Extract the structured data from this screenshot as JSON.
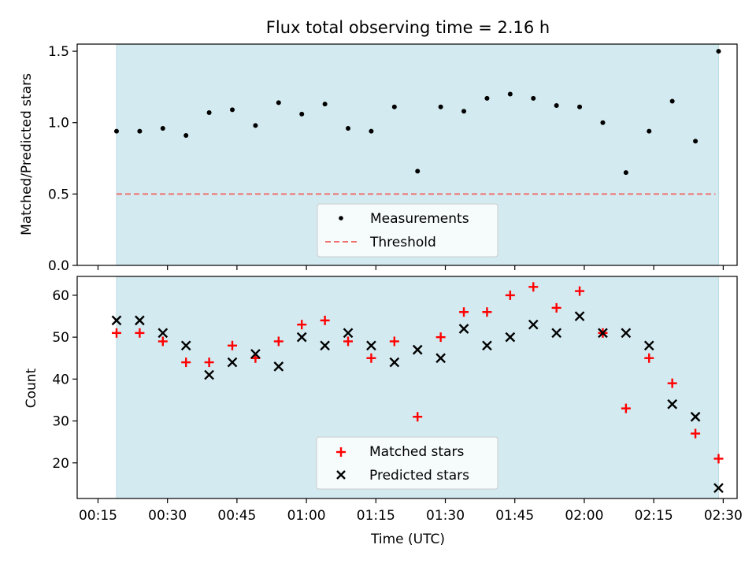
{
  "figure": {
    "title": "Flux total observing time = 2.16 h",
    "xlabel": "Time (UTC)"
  },
  "colors": {
    "shade": "#d3eaf0",
    "shade_edge": "#b9dbe3",
    "threshold": "#f07070",
    "matched": "#ff0000",
    "predicted": "#000000",
    "measurement": "#000000"
  },
  "chart_data": [
    {
      "type": "scatter",
      "panel": "top",
      "ylabel": "Matched/Predicted stars",
      "ylim": [
        0.0,
        1.55
      ],
      "yticks": [
        0.0,
        0.5,
        1.0,
        1.5
      ],
      "ytick_labels": [
        "0.0",
        "0.5",
        "1.0",
        "1.5"
      ],
      "xlim": [
        "00:10:30",
        "02:33:00"
      ],
      "shaded_span": [
        "00:19",
        "02:29"
      ],
      "series": [
        {
          "name": "Measurements",
          "marker": "dot",
          "x": [
            "00:19",
            "00:24",
            "00:29",
            "00:34",
            "00:39",
            "00:44",
            "00:49",
            "00:54",
            "00:59",
            "01:04",
            "01:09",
            "01:14",
            "01:19",
            "01:24",
            "01:29",
            "01:34",
            "01:39",
            "01:44",
            "01:49",
            "01:54",
            "01:59",
            "02:04",
            "02:09",
            "02:14",
            "02:19",
            "02:24",
            "02:29"
          ],
          "y": [
            0.94,
            0.94,
            0.96,
            0.91,
            1.07,
            1.09,
            0.98,
            1.14,
            1.06,
            1.13,
            0.96,
            0.94,
            1.11,
            0.66,
            1.11,
            1.08,
            1.17,
            1.2,
            1.17,
            1.12,
            1.11,
            1.0,
            0.65,
            0.94,
            1.15,
            0.87,
            1.5
          ]
        }
      ],
      "threshold": {
        "name": "Threshold",
        "y": 0.5,
        "x": [
          "00:19",
          "02:29"
        ]
      },
      "legend": {
        "placement": "lower-center",
        "entries": [
          "Measurements",
          "Threshold"
        ]
      }
    },
    {
      "type": "scatter",
      "panel": "bottom",
      "ylabel": "Count",
      "ylim": [
        11.5,
        64.5
      ],
      "yticks": [
        20,
        30,
        40,
        50,
        60
      ],
      "ytick_labels": [
        "20",
        "30",
        "40",
        "50",
        "60"
      ],
      "xlim": [
        "00:10:30",
        "02:33:00"
      ],
      "xticks": [
        "00:15",
        "00:30",
        "00:45",
        "01:00",
        "01:15",
        "01:30",
        "01:45",
        "02:00",
        "02:15",
        "02:30"
      ],
      "xtick_labels": [
        "00:15",
        "00:30",
        "00:45",
        "01:00",
        "01:15",
        "01:30",
        "01:45",
        "02:00",
        "02:15",
        "02:30"
      ],
      "shaded_span": [
        "00:19",
        "02:29"
      ],
      "series": [
        {
          "name": "Matched stars",
          "marker": "plus",
          "x": [
            "00:19",
            "00:24",
            "00:29",
            "00:34",
            "00:39",
            "00:44",
            "00:49",
            "00:54",
            "00:59",
            "01:04",
            "01:09",
            "01:14",
            "01:19",
            "01:24",
            "01:29",
            "01:34",
            "01:39",
            "01:44",
            "01:49",
            "01:54",
            "01:59",
            "02:04",
            "02:09",
            "02:14",
            "02:19",
            "02:24",
            "02:29"
          ],
          "y": [
            51,
            51,
            49,
            44,
            44,
            48,
            45,
            49,
            53,
            54,
            49,
            45,
            49,
            31,
            50,
            56,
            56,
            60,
            62,
            57,
            61,
            51,
            33,
            45,
            39,
            27,
            21
          ]
        },
        {
          "name": "Predicted stars",
          "marker": "x",
          "x": [
            "00:19",
            "00:24",
            "00:29",
            "00:34",
            "00:39",
            "00:44",
            "00:49",
            "00:54",
            "00:59",
            "01:04",
            "01:09",
            "01:14",
            "01:19",
            "01:24",
            "01:29",
            "01:34",
            "01:39",
            "01:44",
            "01:49",
            "01:54",
            "01:59",
            "02:04",
            "02:09",
            "02:14",
            "02:19",
            "02:24",
            "02:29"
          ],
          "y": [
            54,
            54,
            51,
            48,
            41,
            44,
            46,
            43,
            50,
            48,
            51,
            48,
            44,
            47,
            45,
            52,
            48,
            50,
            53,
            51,
            55,
            51,
            51,
            48,
            34,
            31,
            14
          ]
        }
      ],
      "legend": {
        "placement": "lower-center",
        "entries": [
          "Matched stars",
          "Predicted stars"
        ]
      }
    }
  ]
}
